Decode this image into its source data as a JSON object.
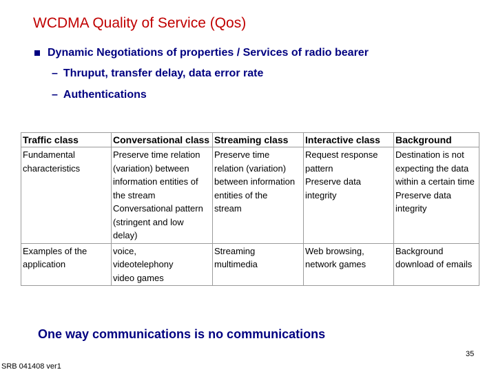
{
  "title": "WCDMA Quality of Service (Qos)",
  "bullet": "Dynamic Negotiations of properties / Services of radio bearer",
  "sub_bullets": [
    "Thruput, transfer delay, data error rate",
    "Authentications"
  ],
  "sub_dash": "–",
  "table": {
    "headers": [
      "Traffic class",
      "Conversational class",
      "Streaming class",
      "Interactive class",
      "Background"
    ],
    "rows": [
      {
        "label": [
          "Fundamental",
          "characteristics"
        ],
        "cells": [
          [
            "Preserve time relation",
            "(variation) between",
            "information entities of",
            "the stream",
            "Conversational pattern",
            "(stringent and low",
            "delay)"
          ],
          [
            "Preserve time",
            "relation (variation)",
            "between information",
            "entities of the",
            "stream"
          ],
          [
            "Request response",
            "pattern",
            "Preserve data",
            "integrity"
          ],
          [
            "Destination is not",
            "expecting the data",
            "within a certain time",
            "Preserve data",
            "integrity"
          ]
        ]
      },
      {
        "label": [
          "Examples of the",
          "application"
        ],
        "cells": [
          [
            "voice,",
            "videotelephony",
            "video games"
          ],
          [
            "Streaming",
            "multimedia"
          ],
          [
            "Web browsing,",
            "network games"
          ],
          [
            "Background",
            "download of emails"
          ]
        ]
      }
    ]
  },
  "closing": "One way communications is no communications",
  "page_number": "35",
  "footer": "SRB 041408 ver1"
}
